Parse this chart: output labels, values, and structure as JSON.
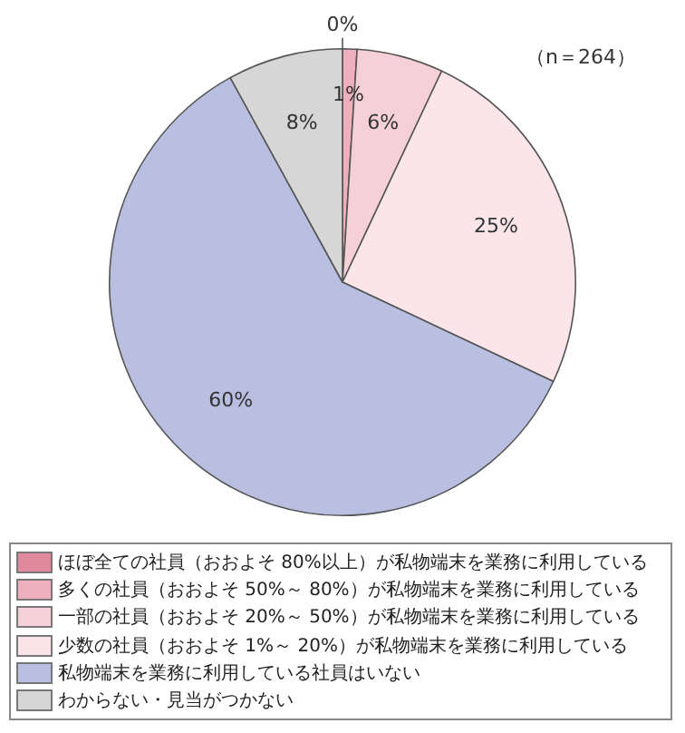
{
  "chart_data": {
    "type": "pie",
    "categories": [
      "ほぼ全ての社員（おおよそ 80%以上）が私物端末を業務に利用している",
      "多くの社員（おおよそ 50%～ 80%）が私物端末を業務に利用している",
      "一部の社員（おおよそ 20%～ 50%）が私物端末を業務に利用している",
      "少数の社員（おおよそ 1%～ 20%）が私物端末を業務に利用している",
      "私物端末を業務に利用している社員はいない",
      "わからない・見当がつかない"
    ],
    "values": [
      0,
      1,
      6,
      25,
      60,
      8
    ],
    "value_labels": [
      "0%",
      "1%",
      "6%",
      "25%",
      "60%",
      "8%"
    ],
    "colors": [
      "#e0889c",
      "#eeb0bd",
      "#f5d0d8",
      "#fae6ea",
      "#b8bfe1",
      "#d6d6d6"
    ],
    "annotations": [
      "（n＝264）"
    ],
    "legend": "bottom"
  }
}
